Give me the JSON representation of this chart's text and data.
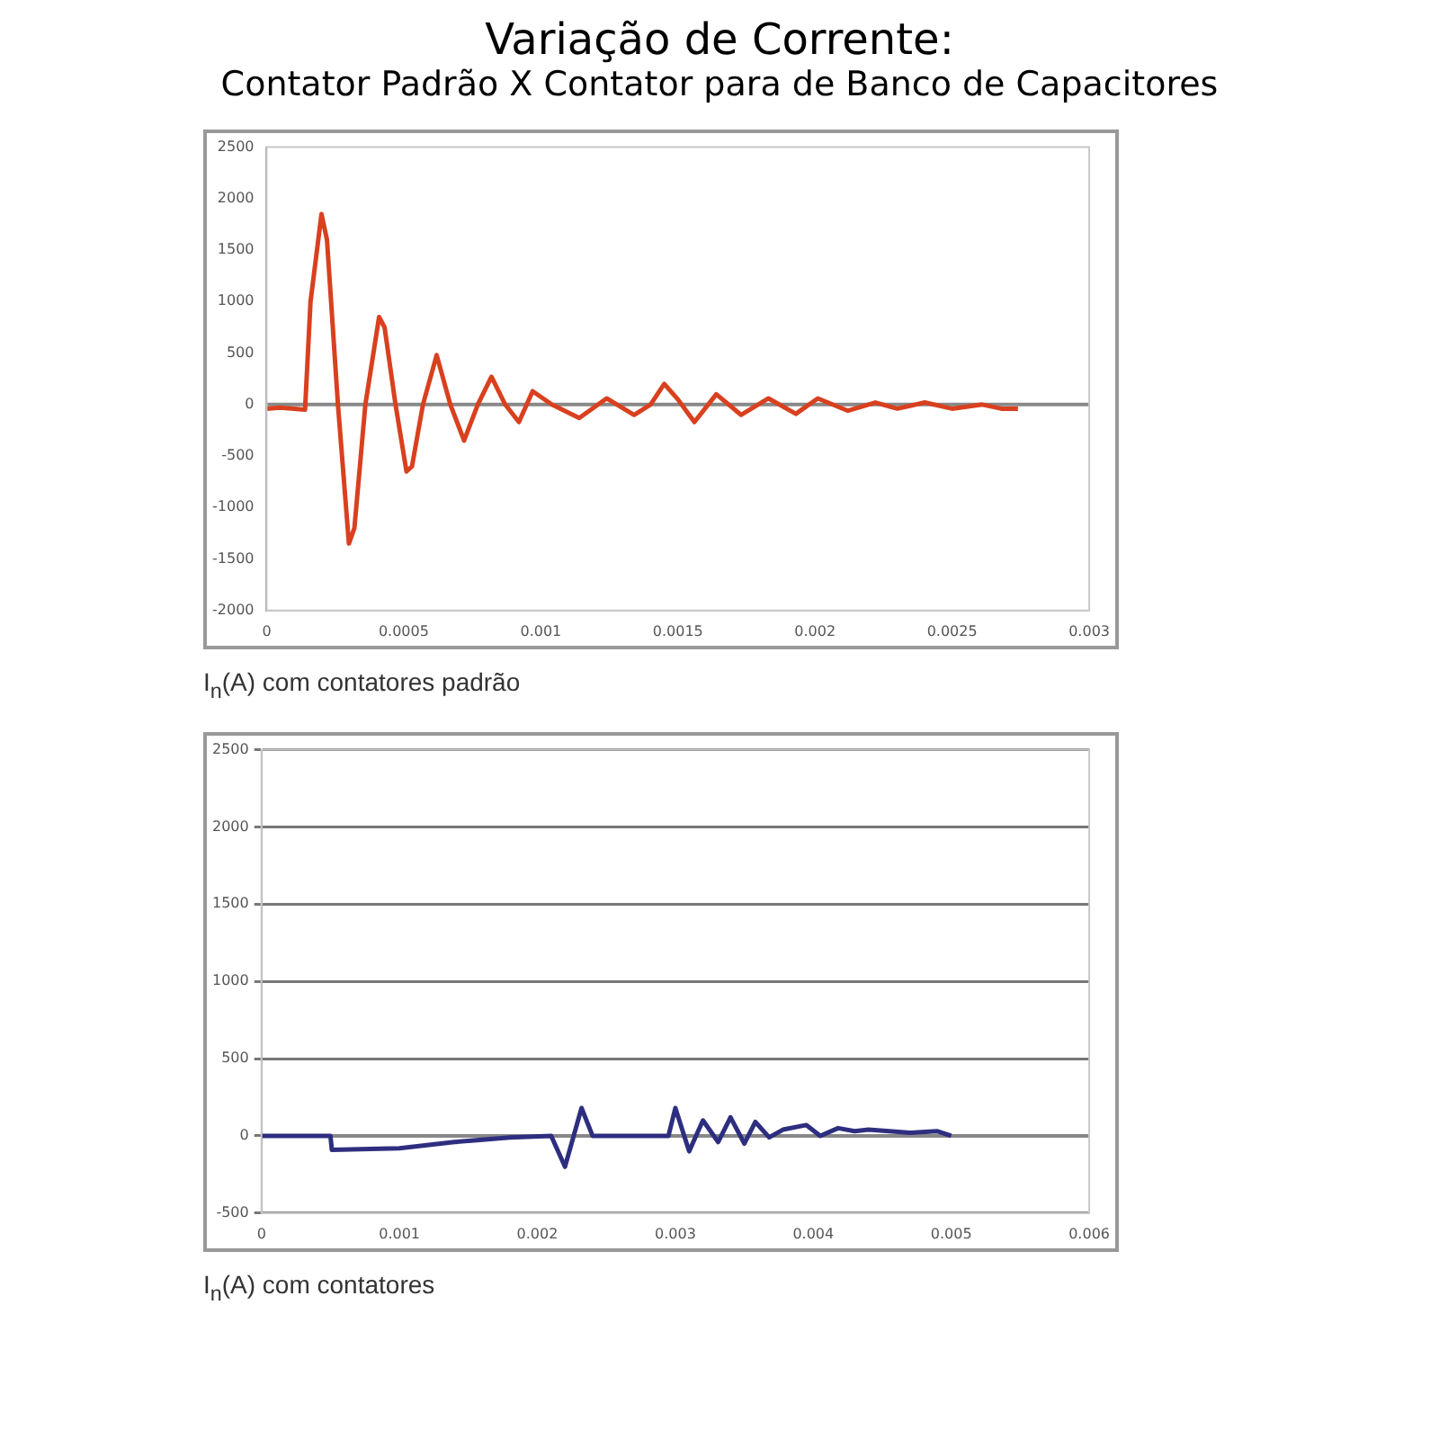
{
  "chart_data": [
    {
      "type": "line",
      "title": "Variação de Corrente:",
      "subtitle": "Contator Padrão X Contator para de Banco de Capacitores",
      "annotations": [
        "I$_{n}$(A) com contatores padrão"
      ],
      "xlim": [
        0,
        0.003
      ],
      "xticks": [
        0,
        0.0005,
        0.001,
        0.0015,
        0.002,
        0.0025,
        0.003
      ],
      "ylim": [
        -2000,
        2500
      ],
      "yticks": [
        -2000,
        -1500,
        -1000,
        -500,
        0,
        500,
        1000,
        1500,
        2000,
        2500
      ],
      "grid": false,
      "marker": "none",
      "ref_lines": [
        {
          "axis": "y",
          "value": 0,
          "color": "#888888"
        }
      ],
      "series": [
        {
          "color": "#d9401f",
          "x": [
            0,
            5e-05,
            0.0001,
            0.00014,
            0.00016,
            0.0002,
            0.00022,
            0.00026,
            0.0003,
            0.00032,
            0.00036,
            0.00041,
            0.00043,
            0.00047,
            0.00051,
            0.00053,
            0.00057,
            0.00062,
            0.00067,
            0.00072,
            0.00077,
            0.00082,
            0.00087,
            0.00092,
            0.00097,
            0.00104,
            0.00114,
            0.00124,
            0.00134,
            0.0014,
            0.00145,
            0.0015,
            0.00156,
            0.00164,
            0.00173,
            0.00183,
            0.00193,
            0.00201,
            0.00212,
            0.00222,
            0.0023,
            0.0024,
            0.0025,
            0.00261,
            0.00268,
            0.00274
          ],
          "values": [
            -40,
            -30,
            -40,
            -50,
            1000,
            1850,
            1600,
            0,
            -1350,
            -1200,
            0,
            850,
            750,
            0,
            -650,
            -600,
            0,
            480,
            0,
            -350,
            0,
            270,
            0,
            -170,
            130,
            0,
            -130,
            60,
            -100,
            0,
            200,
            50,
            -170,
            100,
            -100,
            60,
            -90,
            60,
            -60,
            20,
            -40,
            20,
            -40,
            0,
            -40,
            -40
          ]
        }
      ]
    },
    {
      "type": "line",
      "annotations": [
        "I$_{n}$(A) com contatores"
      ],
      "xlim": [
        0,
        0.006
      ],
      "xticks": [
        0,
        0.001,
        0.002,
        0.003,
        0.004,
        0.005,
        0.006
      ],
      "ylim": [
        -500,
        2500
      ],
      "yticks": [
        -500,
        0,
        500,
        1000,
        1500,
        2000,
        2500
      ],
      "grid": "y",
      "marker": "none",
      "ref_lines": [
        {
          "axis": "y",
          "value": 0,
          "color": "#888888"
        }
      ],
      "series": [
        {
          "color": "#2e2e80",
          "x": [
            0,
            0.0005,
            0.00051,
            0.001,
            0.0014,
            0.0018,
            0.0021,
            0.0022,
            0.00232,
            0.0024,
            0.00295,
            0.003,
            0.0031,
            0.0032,
            0.00331,
            0.0034,
            0.0035,
            0.00358,
            0.00368,
            0.00378,
            0.00395,
            0.00405,
            0.00418,
            0.0043,
            0.0044,
            0.0047,
            0.0049,
            0.005
          ],
          "values": [
            0,
            0,
            -90,
            -80,
            -40,
            -10,
            0,
            -200,
            180,
            0,
            0,
            180,
            -100,
            100,
            -40,
            120,
            -50,
            90,
            -10,
            40,
            70,
            0,
            50,
            30,
            40,
            20,
            30,
            0
          ]
        }
      ]
    }
  ]
}
